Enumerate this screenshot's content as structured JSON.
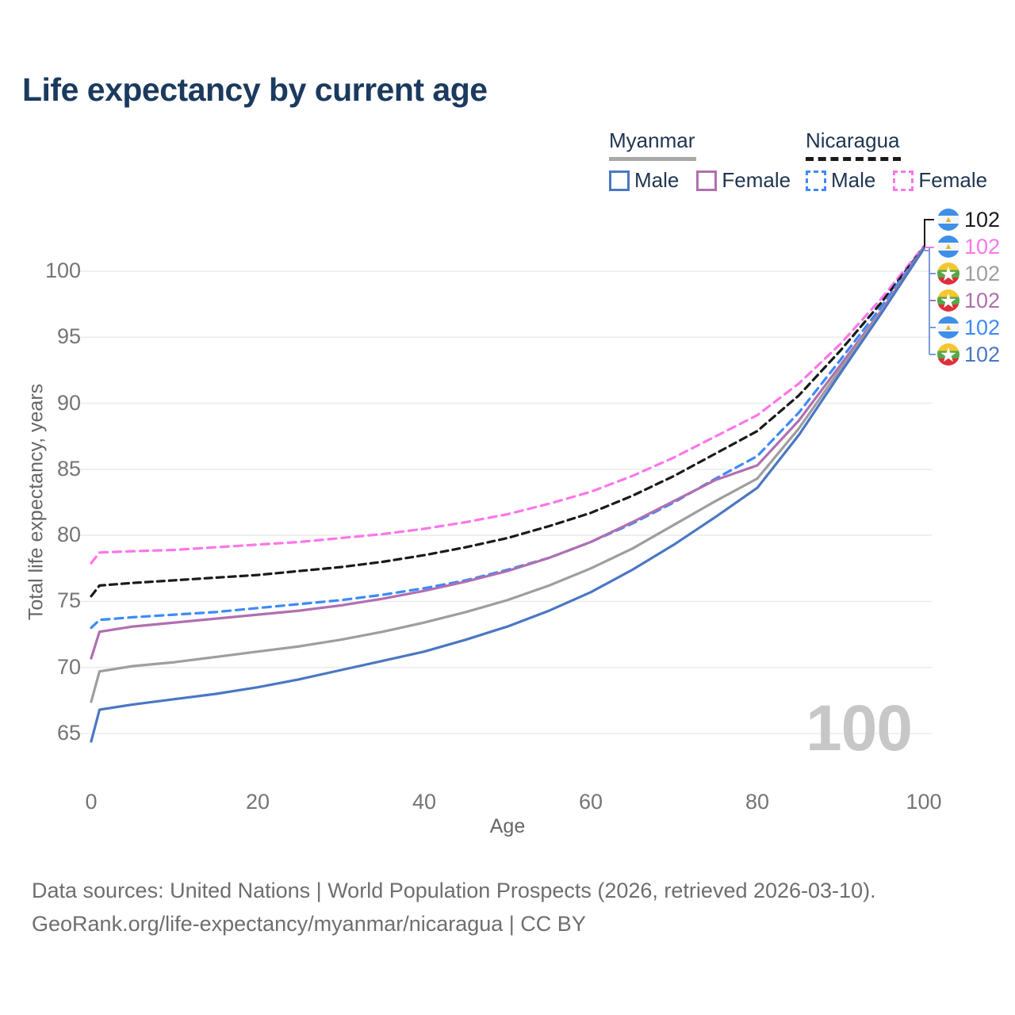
{
  "title": "Life expectancy by current age",
  "watermark": "100",
  "colors": {
    "background": "#ffffff",
    "title_text": "#1b3a5e",
    "legend_text": "#1f3550",
    "gridline": "#ececec",
    "tick_text": "#757575",
    "axis_title_text": "#666666",
    "watermark_text": "#c7c7c7",
    "footer_text": "#6e6e6e",
    "myanmar_underline": "#a8a8a8",
    "nicaragua_underline": "#1a1a1a"
  },
  "icons": {
    "myanmar_flag_star": "★",
    "nicaragua_flag_emblem": "▲"
  },
  "legend": {
    "groups": [
      {
        "country": "Myanmar",
        "line_style": "solid",
        "underline_color": "#a8a8a8",
        "items": [
          {
            "label": "Male",
            "color": "#4a77c4"
          },
          {
            "label": "Female",
            "color": "#b06fb0"
          }
        ]
      },
      {
        "country": "Nicaragua",
        "line_style": "dashed",
        "underline_color": "#1a1a1a",
        "items": [
          {
            "label": "Male",
            "color": "#3d8af7"
          },
          {
            "label": "Female",
            "color": "#fb76ea"
          }
        ]
      }
    ]
  },
  "y_axis": {
    "title": "Total life expectancy, years",
    "ticks": [
      65,
      70,
      75,
      80,
      85,
      90,
      95,
      100
    ]
  },
  "x_axis": {
    "title": "Age",
    "ticks": [
      0,
      20,
      40,
      60,
      80,
      100
    ]
  },
  "end_labels": [
    {
      "value": "102",
      "flag": "nicaragua",
      "color": "#1a1a1a",
      "series": "Nicaragua (all)"
    },
    {
      "value": "102",
      "flag": "nicaragua",
      "color": "#fb76ea",
      "series": "Nicaragua Female"
    },
    {
      "value": "102",
      "flag": "myanmar",
      "color": "#9e9e9e",
      "series": "Myanmar (all)"
    },
    {
      "value": "102",
      "flag": "myanmar",
      "color": "#b06fb0",
      "series": "Myanmar Female"
    },
    {
      "value": "102",
      "flag": "nicaragua",
      "color": "#3d8af7",
      "series": "Nicaragua Male"
    },
    {
      "value": "102",
      "flag": "myanmar",
      "color": "#4a77c4",
      "series": "Myanmar Male"
    }
  ],
  "footer": {
    "line1": "Data sources: United Nations | World Population Prospects (2026, retrieved 2026-03-10).",
    "line2": "GeoRank.org/life-expectancy/myanmar/nicaragua | CC BY"
  },
  "chart_data": {
    "type": "line",
    "title": "Life expectancy by current age",
    "xlabel": "Age",
    "ylabel": "Total life expectancy, years",
    "xlim": [
      0,
      100
    ],
    "ylim": [
      61,
      105
    ],
    "y_gridlines": [
      65,
      70,
      75,
      80,
      85,
      90,
      95,
      100
    ],
    "legend_position": "top-right",
    "grid": true,
    "x": [
      0,
      1,
      5,
      10,
      15,
      20,
      25,
      30,
      35,
      40,
      45,
      50,
      55,
      60,
      65,
      70,
      75,
      80,
      85,
      90,
      95,
      100
    ],
    "series": [
      {
        "name": "Nicaragua Female",
        "country": "Nicaragua",
        "sex": "female",
        "color": "#fb76ea",
        "dash": "10 7",
        "values": [
          77.9,
          78.7,
          78.8,
          78.9,
          79.1,
          79.3,
          79.5,
          79.8,
          80.1,
          80.5,
          81.0,
          81.6,
          82.4,
          83.3,
          84.5,
          85.9,
          87.5,
          89.1,
          91.5,
          94.5,
          98.0,
          101.9
        ]
      },
      {
        "name": "Nicaragua (all)",
        "country": "Nicaragua",
        "sex": "all",
        "color": "#1a1a1a",
        "dash": "9 6",
        "values": [
          75.4,
          76.2,
          76.4,
          76.6,
          76.8,
          77.0,
          77.3,
          77.6,
          78.0,
          78.5,
          79.1,
          79.8,
          80.7,
          81.7,
          83.0,
          84.5,
          86.2,
          87.9,
          90.6,
          94.0,
          97.7,
          101.8
        ]
      },
      {
        "name": "Nicaragua Male",
        "country": "Nicaragua",
        "sex": "male",
        "color": "#3d8af7",
        "dash": "10 7",
        "values": [
          73.0,
          73.6,
          73.8,
          74.0,
          74.2,
          74.5,
          74.8,
          75.1,
          75.5,
          76.0,
          76.6,
          77.4,
          78.3,
          79.5,
          80.9,
          82.5,
          84.3,
          86.0,
          89.3,
          93.3,
          97.4,
          101.8
        ]
      },
      {
        "name": "Myanmar Female",
        "country": "Myanmar",
        "sex": "female",
        "color": "#b06fb0",
        "dash": null,
        "values": [
          70.7,
          72.7,
          73.1,
          73.4,
          73.7,
          74.0,
          74.3,
          74.7,
          75.2,
          75.8,
          76.5,
          77.3,
          78.3,
          79.5,
          81.0,
          82.6,
          84.2,
          85.3,
          88.7,
          92.9,
          97.1,
          101.8
        ]
      },
      {
        "name": "Myanmar (all)",
        "country": "Myanmar",
        "sex": "all",
        "color": "#9e9e9e",
        "dash": null,
        "values": [
          67.4,
          69.7,
          70.1,
          70.4,
          70.8,
          71.2,
          71.6,
          72.1,
          72.7,
          73.4,
          74.2,
          75.1,
          76.2,
          77.5,
          79.0,
          80.8,
          82.6,
          84.3,
          88.1,
          92.6,
          97.0,
          101.7
        ]
      },
      {
        "name": "Myanmar Male",
        "country": "Myanmar",
        "sex": "male",
        "color": "#4a77c4",
        "dash": null,
        "values": [
          64.4,
          66.8,
          67.2,
          67.6,
          68.0,
          68.5,
          69.1,
          69.8,
          70.5,
          71.2,
          72.1,
          73.1,
          74.3,
          75.7,
          77.4,
          79.3,
          81.4,
          83.6,
          87.6,
          92.3,
          96.9,
          101.7
        ]
      }
    ]
  }
}
